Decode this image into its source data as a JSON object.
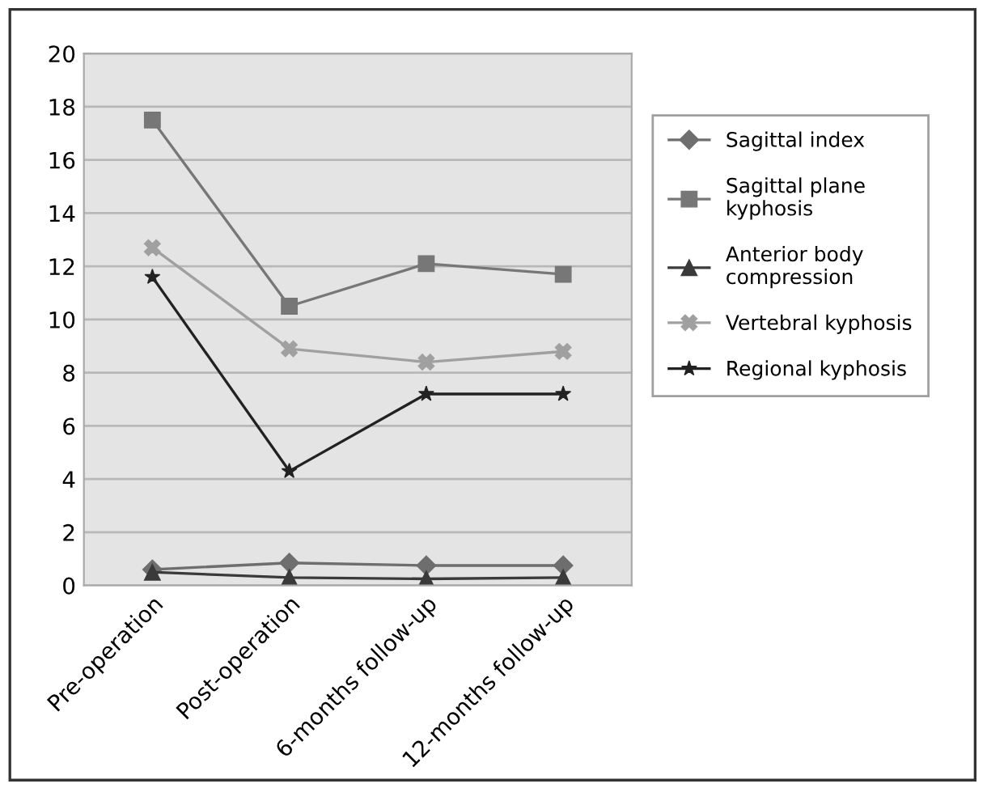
{
  "chart_data": {
    "type": "line",
    "categories": [
      "Pre-operation",
      "Post-operation",
      "6-months follow-up",
      "12-months follow-up"
    ],
    "series": [
      {
        "name": "Sagittal index",
        "color": "#6e6e6e",
        "marker": "diamond",
        "values": [
          0.6,
          0.85,
          0.75,
          0.75
        ]
      },
      {
        "name": "Sagittal plane kyphosis",
        "color": "#777777",
        "marker": "square",
        "values": [
          17.5,
          10.5,
          12.1,
          11.7
        ]
      },
      {
        "name": "Anterior body compression",
        "color": "#3a3a3a",
        "marker": "triangle",
        "values": [
          0.5,
          0.3,
          0.25,
          0.3
        ]
      },
      {
        "name": "Vertebral kyphosis",
        "color": "#a0a0a0",
        "marker": "cross",
        "values": [
          12.7,
          8.9,
          8.4,
          8.8
        ]
      },
      {
        "name": "Regional kyphosis",
        "color": "#222222",
        "marker": "star",
        "values": [
          11.6,
          4.3,
          7.2,
          7.2
        ]
      }
    ],
    "ylim": [
      0,
      20
    ],
    "yticks": [
      0,
      2,
      4,
      6,
      8,
      10,
      12,
      14,
      16,
      18,
      20
    ],
    "grid": "y",
    "legend": "right"
  }
}
